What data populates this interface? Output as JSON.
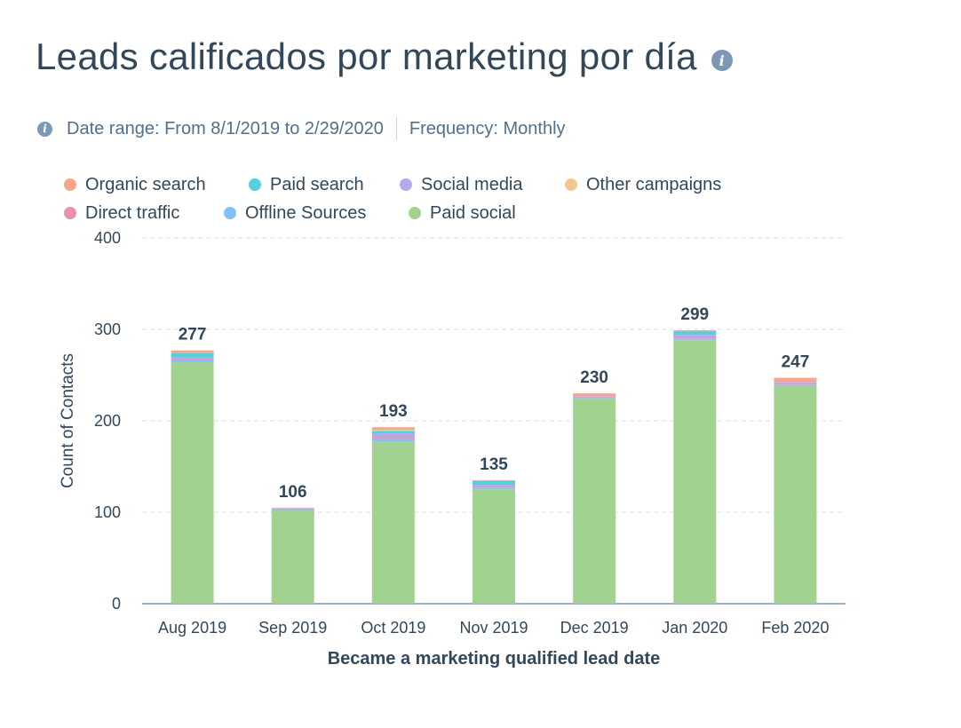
{
  "header": {
    "title": "Leads calificados por marketing por día",
    "date_range": "Date range: From 8/1/2019 to 2/29/2020",
    "frequency": "Frequency: Monthly"
  },
  "colors": {
    "Organic search": "#f8a58d",
    "Paid search": "#51d3d9",
    "Social media": "#b8a7ee",
    "Other campaigns": "#f5c78e",
    "Direct traffic": "#ea90b1",
    "Offline Sources": "#81c1fd",
    "Paid social": "#a2d28f"
  },
  "chart_data": {
    "type": "bar",
    "stacked": true,
    "title": "Leads calificados por marketing por día",
    "xlabel": "Became a marketing qualified lead date",
    "ylabel": "Count of Contacts",
    "ylim": [
      0,
      400
    ],
    "yticks": [
      0,
      100,
      200,
      300,
      400
    ],
    "legend_rows": [
      [
        "Organic search",
        "Paid search",
        "Social media",
        "Other campaigns"
      ],
      [
        "Direct traffic",
        "Offline Sources",
        "Paid social"
      ]
    ],
    "categories": [
      "Aug 2019",
      "Sep 2019",
      "Oct 2019",
      "Nov 2019",
      "Dec 2019",
      "Jan 2020",
      "Feb 2020"
    ],
    "totals": [
      277,
      106,
      193,
      135,
      230,
      299,
      247
    ],
    "series": [
      {
        "name": "Paid social",
        "values": [
          264,
          102,
          177,
          125,
          224,
          288,
          238
        ]
      },
      {
        "name": "Offline Sources",
        "values": [
          2,
          1,
          3,
          2,
          1,
          1,
          1
        ]
      },
      {
        "name": "Direct traffic",
        "values": [
          1,
          0,
          2,
          1,
          1,
          1,
          1
        ]
      },
      {
        "name": "Social media",
        "values": [
          2,
          1,
          4,
          2,
          1,
          4,
          2
        ]
      },
      {
        "name": "Paid search",
        "values": [
          5,
          0,
          3,
          4,
          0,
          4,
          0
        ]
      },
      {
        "name": "Other campaigns",
        "values": [
          0,
          0,
          1,
          0,
          0,
          0,
          0
        ]
      },
      {
        "name": "Organic search",
        "values": [
          3,
          1,
          3,
          1,
          3,
          1,
          5
        ]
      }
    ]
  }
}
